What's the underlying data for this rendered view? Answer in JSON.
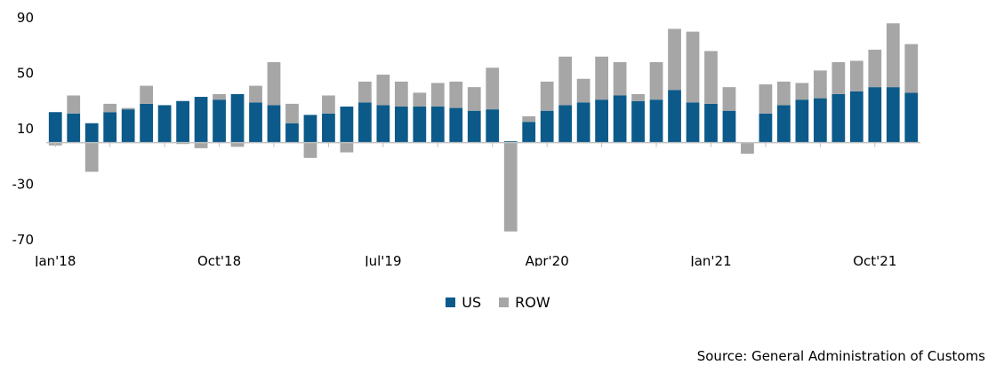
{
  "chart_data": {
    "type": "bar",
    "stacked": true,
    "ylim": [
      -70,
      90
    ],
    "yticks": [
      90,
      50,
      10,
      -30,
      -70
    ],
    "grid": false,
    "x_tick_labels": [
      {
        "index": 0,
        "label": "Jan'18"
      },
      {
        "index": 9,
        "label": "Oct'18"
      },
      {
        "index": 18,
        "label": "Jul'19"
      },
      {
        "index": 27,
        "label": "Apr'20"
      },
      {
        "index": 36,
        "label": "Jan'21"
      },
      {
        "index": 45,
        "label": "Oct'21"
      }
    ],
    "series": [
      {
        "name": "US",
        "color": "#0b5a8a",
        "values": [
          22,
          21,
          14,
          22,
          24,
          28,
          27,
          30,
          33,
          31,
          35,
          29,
          27,
          14,
          20,
          21,
          26,
          29,
          27,
          26,
          26,
          26,
          25,
          23,
          24,
          1,
          15,
          23,
          27,
          29,
          31,
          34,
          30,
          31,
          38,
          29,
          28,
          23,
          0,
          21,
          27,
          31,
          32,
          35,
          37,
          40,
          40,
          36
        ]
      },
      {
        "name": "ROW",
        "color": "#a6a6a6",
        "values": [
          -2,
          13,
          -21,
          6,
          1,
          13,
          0,
          -1,
          -4,
          4,
          -3,
          12,
          31,
          14,
          -11,
          13,
          -7,
          15,
          22,
          18,
          10,
          17,
          19,
          17,
          30,
          -64,
          4,
          21,
          35,
          17,
          31,
          24,
          5,
          27,
          44,
          51,
          38,
          17,
          -8,
          21,
          17,
          12,
          20,
          23,
          22,
          27,
          46,
          35
        ]
      }
    ]
  },
  "legend": {
    "us_label": "US",
    "row_label": "ROW"
  },
  "source_text": "Source: General Administration of Customs"
}
